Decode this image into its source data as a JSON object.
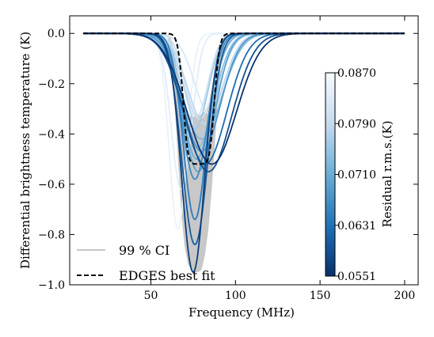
{
  "chart_data": {
    "type": "line",
    "xlabel": "Frequency (MHz)",
    "ylabel": "Differential brightness temperature (K)",
    "xlim": [
      2,
      208
    ],
    "ylim": [
      -1.0,
      0.07
    ],
    "xticks": [
      50,
      100,
      150,
      200
    ],
    "yticks": [
      0.0,
      -0.2,
      -0.4,
      -0.6,
      -0.8,
      -1.0
    ],
    "xtick_labels": [
      "50",
      "100",
      "150",
      "200"
    ],
    "ytick_labels": [
      "0.0",
      "−0.2",
      "−0.4",
      "−0.6",
      "−0.8",
      "−1.0"
    ],
    "grid": false,
    "legend": {
      "placement": "lower-left",
      "entries": [
        {
          "label": "99 % CI",
          "style": "solid",
          "color": "#c8c8c8"
        },
        {
          "label": "EDGES best fit",
          "style": "dashed",
          "color": "#000000"
        }
      ]
    },
    "edges_best_fit": {
      "center": 78.3,
      "width": 18.7,
      "amplitude": -0.52,
      "flattening": 7
    },
    "confidence_band": {
      "x": [
        60,
        62,
        64,
        66,
        68,
        70,
        72,
        74,
        76,
        78,
        80,
        82,
        84,
        86,
        88,
        90,
        92,
        94,
        96
      ],
      "upper": [
        0.0,
        -0.02,
        -0.08,
        -0.18,
        -0.26,
        -0.3,
        -0.32,
        -0.33,
        -0.33,
        -0.33,
        -0.32,
        -0.31,
        -0.28,
        -0.22,
        -0.14,
        -0.07,
        -0.03,
        -0.01,
        0.0
      ],
      "lower": [
        -0.02,
        -0.1,
        -0.28,
        -0.5,
        -0.72,
        -0.85,
        -0.92,
        -0.94,
        -0.95,
        -0.95,
        -0.94,
        -0.88,
        -0.78,
        -0.62,
        -0.42,
        -0.22,
        -0.1,
        -0.03,
        -0.01
      ]
    },
    "colorbar": {
      "label": "Residual r.m.s.(K)",
      "ticks": [
        "0.0870",
        "0.0790",
        "0.0710",
        "0.0631",
        "0.0551"
      ],
      "min": 0.0551,
      "max": 0.087,
      "colormap": [
        "#08306b",
        "#2171b5",
        "#6baed6",
        "#c6dbef",
        "#f7fbff"
      ]
    },
    "series": [
      {
        "center": 66,
        "amplitude": -0.78,
        "width": 12,
        "rms": 0.0848
      },
      {
        "center": 68,
        "amplitude": -0.62,
        "width": 14,
        "rms": 0.0835
      },
      {
        "center": 85,
        "amplitude": -0.32,
        "width": 22,
        "rms": 0.0825
      },
      {
        "center": 79,
        "amplitude": -0.34,
        "width": 20,
        "rms": 0.0812
      },
      {
        "center": 77,
        "amplitude": -0.33,
        "width": 16,
        "rms": 0.08
      },
      {
        "center": 82,
        "amplitude": -0.36,
        "width": 24,
        "rms": 0.0785
      },
      {
        "center": 80,
        "amplitude": -0.4,
        "width": 22,
        "rms": 0.077
      },
      {
        "center": 76,
        "amplitude": -0.38,
        "width": 18,
        "rms": 0.0755
      },
      {
        "center": 78,
        "amplitude": -0.45,
        "width": 22,
        "rms": 0.074
      },
      {
        "center": 80,
        "amplitude": -0.42,
        "width": 28,
        "rms": 0.0725
      },
      {
        "center": 77,
        "amplitude": -0.5,
        "width": 20,
        "rms": 0.071
      },
      {
        "center": 78,
        "amplitude": -0.55,
        "width": 22,
        "rms": 0.0695
      },
      {
        "center": 80,
        "amplitude": -0.47,
        "width": 26,
        "rms": 0.068
      },
      {
        "center": 76,
        "amplitude": -0.58,
        "width": 18,
        "rms": 0.0665
      },
      {
        "center": 76,
        "amplitude": -0.74,
        "width": 16,
        "rms": 0.0645
      },
      {
        "center": 82,
        "amplitude": -0.52,
        "width": 30,
        "rms": 0.0625
      },
      {
        "center": 76,
        "amplitude": -0.84,
        "width": 18,
        "rms": 0.0605
      },
      {
        "center": 84,
        "amplitude": -0.55,
        "width": 32,
        "rms": 0.059
      },
      {
        "center": 75,
        "amplitude": -0.95,
        "width": 16,
        "rms": 0.057
      },
      {
        "center": 86,
        "amplitude": -0.52,
        "width": 34,
        "rms": 0.0555
      }
    ]
  }
}
